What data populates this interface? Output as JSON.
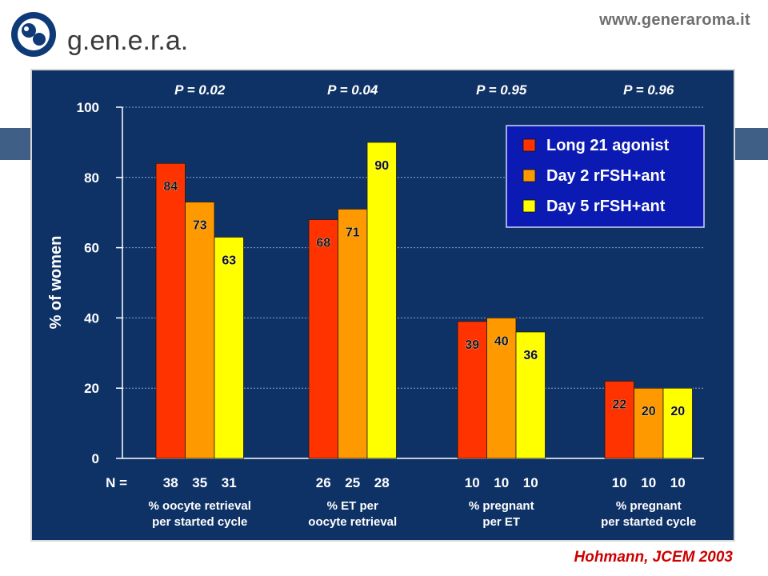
{
  "header": {
    "logo_text": "g.en.e.r.a.",
    "url": "www.generaroma.it"
  },
  "colors": {
    "panel_bg": "#0f3266",
    "band": "#3f5f86",
    "series": [
      "#ff3300",
      "#ff9900",
      "#ffff00"
    ],
    "legend_bg": "#0a1ab3",
    "citation": "#cc0000",
    "text": "#ffffff"
  },
  "chart_data": {
    "type": "bar",
    "ylabel": "% of women",
    "ylim": [
      0,
      100
    ],
    "yticks": [
      0,
      20,
      40,
      60,
      80,
      100
    ],
    "grid": "horizontal dotted",
    "legend_position": "top-right",
    "series": [
      {
        "name": "Long 21 agonist",
        "values": [
          84,
          68,
          39,
          22
        ]
      },
      {
        "name": "Day 2 rFSH+ant",
        "values": [
          73,
          71,
          40,
          20
        ]
      },
      {
        "name": "Day 5 rFSH+ant",
        "values": [
          63,
          90,
          36,
          20
        ]
      }
    ],
    "groups": [
      {
        "p_value": "P = 0.02",
        "n": [
          "38",
          "35",
          "31"
        ],
        "label_lines": [
          "% oocyte retrieval",
          "per started cycle"
        ]
      },
      {
        "p_value": "P = 0.04",
        "n": [
          "26",
          "25",
          "28"
        ],
        "label_lines": [
          "% ET per",
          "oocyte retrieval"
        ]
      },
      {
        "p_value": "P = 0.95",
        "n": [
          "10",
          "10",
          "10"
        ],
        "label_lines": [
          "% pregnant",
          "per ET"
        ]
      },
      {
        "p_value": "P = 0.96",
        "n": [
          "10",
          "10",
          "10"
        ],
        "label_lines": [
          "% pregnant",
          "per started cycle"
        ]
      }
    ],
    "n_label": "N ="
  },
  "citation": "Hohmann, JCEM 2003"
}
